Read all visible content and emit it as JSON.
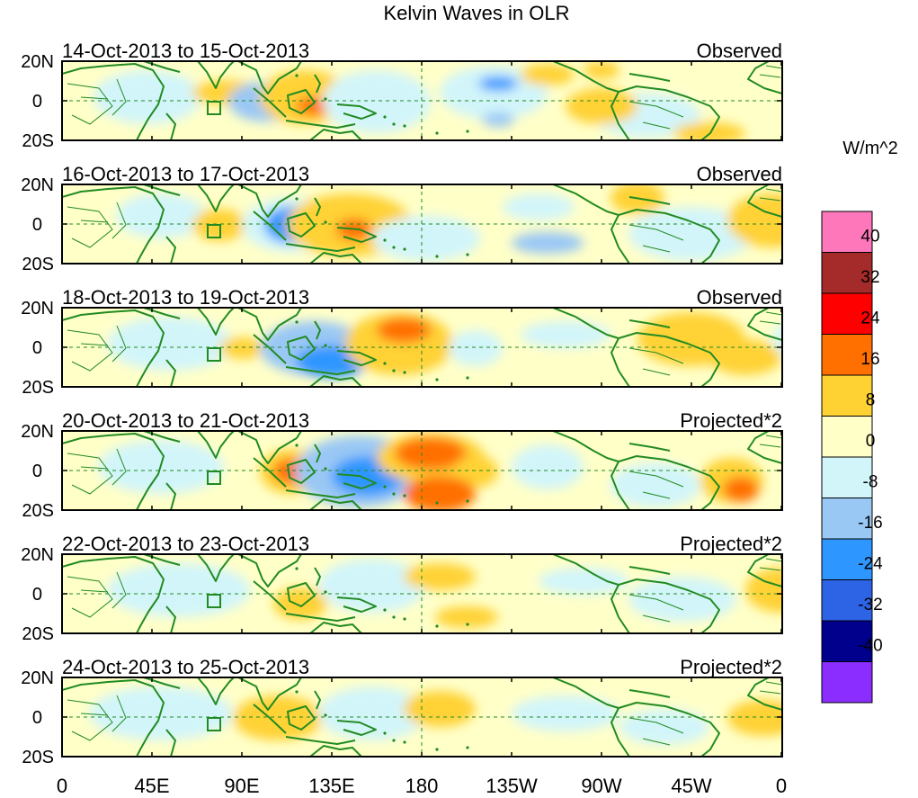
{
  "title": "Kelvin Waves in OLR",
  "units_label": "W/m^2",
  "lat_labels": [
    "20N",
    "0",
    "20S"
  ],
  "lon_labels": [
    "0",
    "45E",
    "90E",
    "135E",
    "180",
    "135W",
    "90W",
    "45W",
    "0"
  ],
  "panels": [
    {
      "date_range": "14-Oct-2013 to 15-Oct-2013",
      "kind": "Observed"
    },
    {
      "date_range": "16-Oct-2013 to 17-Oct-2013",
      "kind": "Observed"
    },
    {
      "date_range": "18-Oct-2013 to 19-Oct-2013",
      "kind": "Observed"
    },
    {
      "date_range": "20-Oct-2013 to 21-Oct-2013",
      "kind": "Projected*2"
    },
    {
      "date_range": "22-Oct-2013 to 23-Oct-2013",
      "kind": "Projected*2"
    },
    {
      "date_range": "24-Oct-2013 to 25-Oct-2013",
      "kind": "Projected*2"
    }
  ],
  "colorbar": {
    "labels": [
      "40",
      "32",
      "24",
      "16",
      "8",
      "0",
      "-8",
      "-16",
      "-24",
      "-32",
      "-40"
    ],
    "colors": [
      "#ff77bb",
      "#a52a2a",
      "#ff0000",
      "#ff7000",
      "#ffd234",
      "#ffffc8",
      "#d2f5fa",
      "#9ac8f5",
      "#2d96ff",
      "#2d64e6",
      "#00008c",
      "#8c2dff"
    ]
  },
  "colors": {
    "land_outline": "#228b22",
    "ref_line": "#228b22"
  }
}
